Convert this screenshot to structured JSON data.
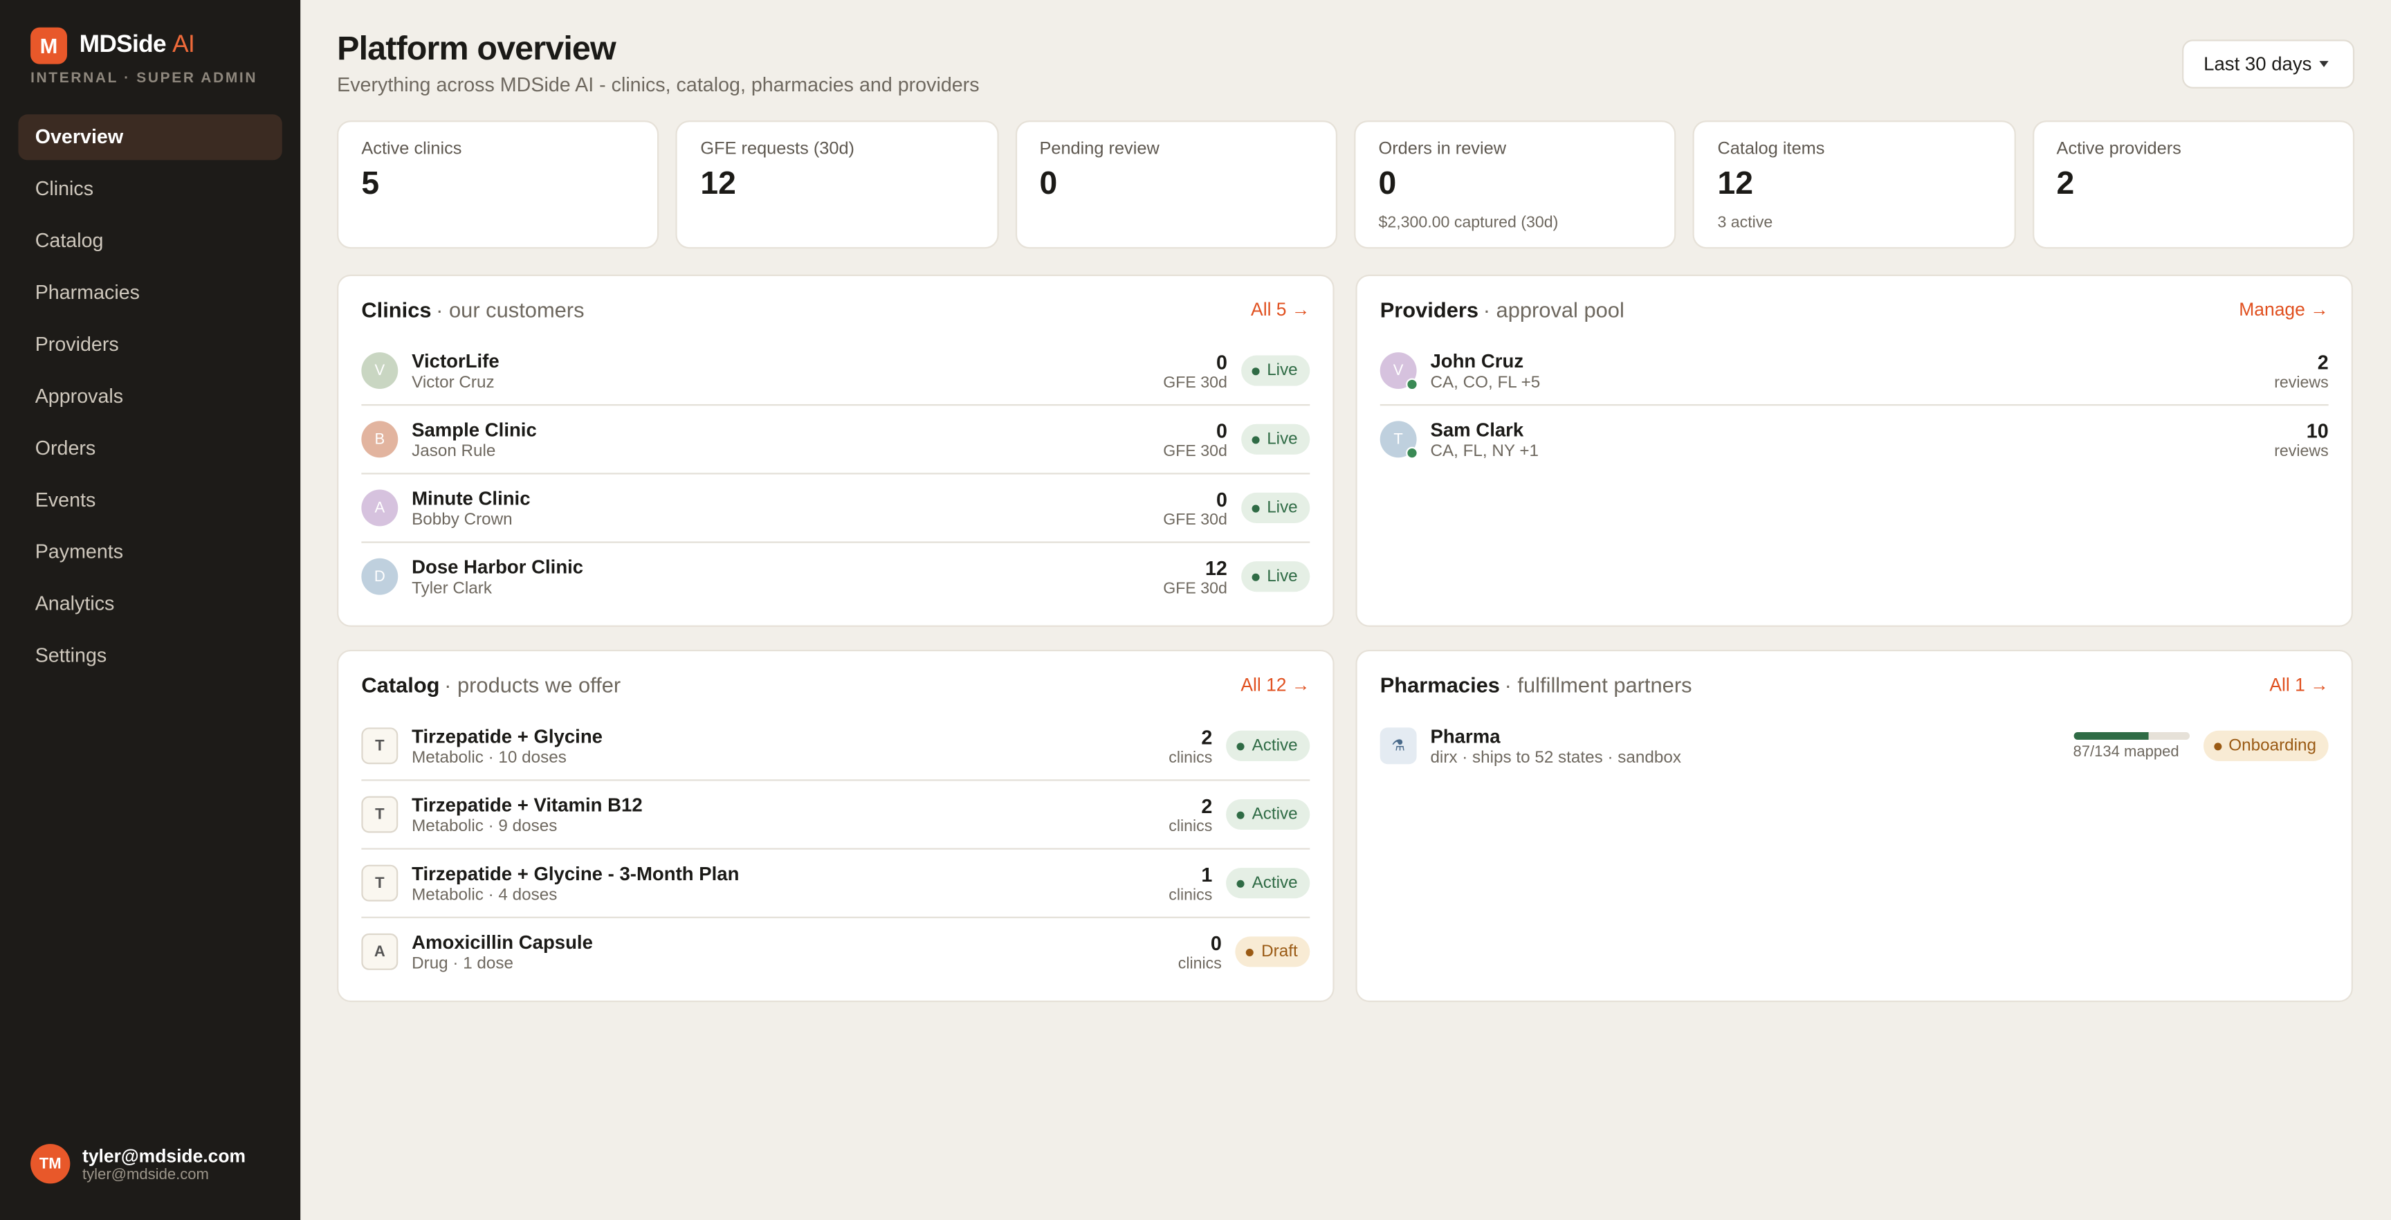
{
  "sidebar": {
    "logo_initial": "M",
    "brand": "MDSide",
    "brand_accent": "AI",
    "role": "INTERNAL · SUPER ADMIN",
    "nav": [
      "Overview",
      "Clinics",
      "Catalog",
      "Pharmacies",
      "Providers",
      "Approvals",
      "Orders",
      "Events",
      "Payments",
      "Analytics",
      "Settings"
    ],
    "user": {
      "initials": "TM",
      "name": "tyler@mdside.com",
      "email": "tyler@mdside.com"
    }
  },
  "header": {
    "title": "Platform overview",
    "subtitle": "Everything across MDSide AI - clinics, catalog, pharmacies and providers",
    "range": "Last 30 days"
  },
  "stats": [
    {
      "label": "Active clinics",
      "value": 5
    },
    {
      "label": "GFE requests (30d)",
      "value": 12
    },
    {
      "label": "Pending review",
      "value": 0
    },
    {
      "label": "Orders in review",
      "value": 0,
      "note": "$2,300.00 captured (30d)"
    },
    {
      "label": "Catalog items",
      "value": 12,
      "note": "3 active"
    },
    {
      "label": "Active providers",
      "value": 2
    }
  ],
  "clinics": {
    "title": "Clinics",
    "subtitle": "· our customers",
    "link": "All 5 →",
    "rows": [
      {
        "initial": "V",
        "name": "VictorLife",
        "detail": "Victor Cruz",
        "count": 0,
        "count_label": "GFE 30d",
        "status": "Live"
      },
      {
        "initial": "B",
        "name": "Sample Clinic",
        "detail": "Jason Rule",
        "count": 0,
        "count_label": "GFE 30d",
        "status": "Live"
      },
      {
        "initial": "A",
        "name": "Minute Clinic",
        "detail": "Bobby Crown",
        "count": 0,
        "count_label": "GFE 30d",
        "status": "Live"
      },
      {
        "initial": "D",
        "name": "Dose Harbor Clinic",
        "detail": "Tyler Clark",
        "count": 12,
        "count_label": "GFE 30d",
        "status": "Live"
      }
    ]
  },
  "providers": {
    "title": "Providers",
    "subtitle": "· approval pool",
    "link": "Manage →",
    "rows": [
      {
        "initial": "V",
        "name": "John Cruz",
        "detail": "CA, CO, FL +5",
        "count": 2,
        "count_label": "reviews"
      },
      {
        "initial": "T",
        "name": "Sam Clark",
        "detail": "CA, FL, NY +1",
        "count": 10,
        "count_label": "reviews"
      }
    ]
  },
  "catalog": {
    "title": "Catalog",
    "subtitle": "· products we offer",
    "link": "All 12 →",
    "rows": [
      {
        "initial": "T",
        "name": "Tirzepatide + Glycine",
        "detail": "Metabolic · 10 doses",
        "count": 2,
        "count_label": "clinics",
        "status": "Active"
      },
      {
        "initial": "T",
        "name": "Tirzepatide + Vitamin B12",
        "detail": "Metabolic · 9 doses",
        "count": 2,
        "count_label": "clinics",
        "status": "Active"
      },
      {
        "initial": "T",
        "name": "Tirzepatide + Glycine - 3-Month Plan",
        "detail": "Metabolic · 4 doses",
        "count": 1,
        "count_label": "clinics",
        "status": "Active"
      },
      {
        "initial": "A",
        "name": "Amoxicillin Capsule",
        "detail": "Drug · 1 dose",
        "count": 0,
        "count_label": "clinics",
        "status": "Draft"
      }
    ]
  },
  "pharmacies": {
    "title": "Pharmacies",
    "subtitle": "· fulfillment partners",
    "link": "All 1 →",
    "rows": [
      {
        "initial": "⚗",
        "name": "Pharma",
        "detail": "dirx · ships to 52 states · sandbox",
        "mapped": 87,
        "total": 134,
        "mapped_label": "87/134 mapped",
        "status": "Onboarding"
      }
    ]
  }
}
